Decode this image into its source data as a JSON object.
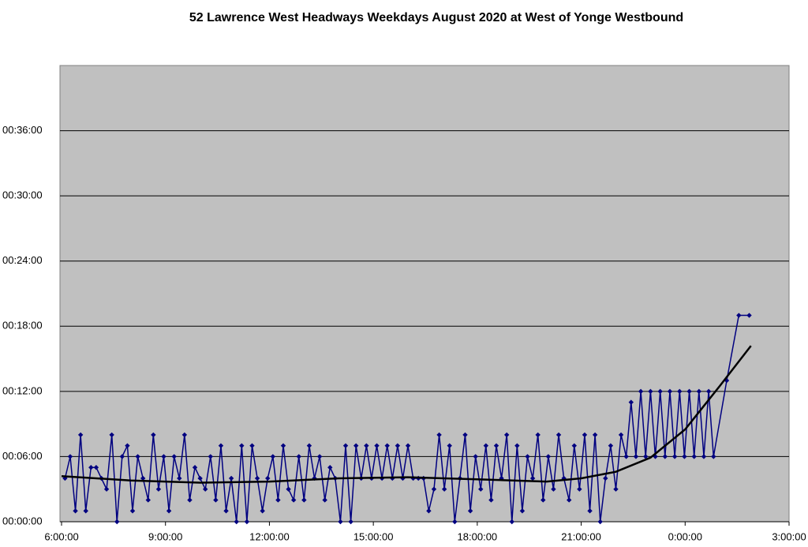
{
  "chart_data": {
    "type": "line",
    "title": "52 Lawrence West Headways Weekdays August 2020 at West of Yonge Westbound",
    "xlim": [
      6,
      27
    ],
    "xticks": [
      {
        "value": 6,
        "label": "6:00:00"
      },
      {
        "value": 9,
        "label": "9:00:00"
      },
      {
        "value": 12,
        "label": "12:00:00"
      },
      {
        "value": 15,
        "label": "15:00:00"
      },
      {
        "value": 18,
        "label": "18:00:00"
      },
      {
        "value": 21,
        "label": "21:00:00"
      },
      {
        "value": 24,
        "label": "0:00:00"
      },
      {
        "value": 27,
        "label": "3:00:00"
      }
    ],
    "ylim": [
      0,
      42
    ],
    "yticks": [
      {
        "value": 0,
        "label": "00:00:00"
      },
      {
        "value": 6,
        "label": "00:06:00"
      },
      {
        "value": 12,
        "label": "00:12:00"
      },
      {
        "value": 18,
        "label": "00:18:00"
      },
      {
        "value": 24,
        "label": "00:24:00"
      },
      {
        "value": 30,
        "label": "00:30:00"
      },
      {
        "value": 36,
        "label": "00:36:00"
      }
    ],
    "grid": true,
    "series": [
      {
        "color": "#000080",
        "markers": true,
        "x": [
          6.1,
          6.25,
          6.4,
          6.55,
          6.7,
          6.85,
          7,
          7.15,
          7.3,
          7.45,
          7.6,
          7.75,
          7.9,
          8.05,
          8.2,
          8.35,
          8.5,
          8.65,
          8.8,
          8.95,
          9.1,
          9.25,
          9.4,
          9.55,
          9.7,
          9.85,
          10,
          10.15,
          10.3,
          10.45,
          10.6,
          10.75,
          10.9,
          11.05,
          11.2,
          11.35,
          11.5,
          11.65,
          11.8,
          11.95,
          12.1,
          12.25,
          12.4,
          12.55,
          12.7,
          12.85,
          13,
          13.15,
          13.3,
          13.45,
          13.6,
          13.75,
          13.9,
          14.05,
          14.2,
          14.35,
          14.5,
          14.65,
          14.8,
          14.95,
          15.1,
          15.25,
          15.4,
          15.55,
          15.7,
          15.85,
          16,
          16.15,
          16.3,
          16.45,
          16.6,
          16.75,
          16.9,
          17.05,
          17.2,
          17.35,
          17.5,
          17.65,
          17.8,
          17.95,
          18.1,
          18.25,
          18.4,
          18.55,
          18.7,
          18.85,
          19,
          19.15,
          19.3,
          19.45,
          19.6,
          19.75,
          19.9,
          20.05,
          20.2,
          20.35,
          20.5,
          20.65,
          20.8,
          20.95,
          21.1,
          21.25,
          21.4,
          21.55,
          21.7,
          21.85,
          22,
          22.15,
          22.3,
          22.44,
          22.58,
          22.72,
          22.86,
          23,
          23.14,
          23.28,
          23.42,
          23.56,
          23.7,
          23.84,
          23.98,
          24.12,
          24.26,
          24.4,
          24.54,
          24.68,
          24.82,
          25.2,
          25.55,
          25.85
        ],
        "values": [
          4,
          6,
          1,
          8,
          1,
          5,
          5,
          4,
          3,
          8,
          0,
          6,
          7,
          1,
          6,
          4,
          2,
          8,
          3,
          6,
          1,
          6,
          4,
          8,
          2,
          5,
          4,
          3,
          6,
          2,
          7,
          1,
          4,
          0,
          7,
          0,
          7,
          4,
          1,
          4,
          6,
          2,
          7,
          3,
          2,
          6,
          2,
          7,
          4,
          6,
          2,
          5,
          4,
          0,
          7,
          0,
          7,
          4,
          7,
          4,
          7,
          4,
          7,
          4,
          7,
          4,
          7,
          4,
          4,
          4,
          1,
          3,
          8,
          3,
          7,
          0,
          4,
          8,
          1,
          6,
          3,
          7,
          2,
          7,
          4,
          8,
          0,
          7,
          1,
          6,
          4,
          8,
          2,
          6,
          3,
          8,
          4,
          2,
          7,
          3,
          8,
          1,
          8,
          0,
          4,
          7,
          3,
          8,
          6,
          11,
          6,
          12,
          6,
          12,
          6,
          12,
          6,
          12,
          6,
          12,
          6,
          12,
          6,
          12,
          6,
          12,
          6,
          13,
          19,
          19
        ]
      },
      {
        "color": "#000000",
        "markers": false,
        "x": [
          6,
          8,
          10,
          12,
          14,
          16,
          18,
          20,
          21,
          22,
          23,
          24,
          25,
          25.9
        ],
        "values": [
          4.2,
          3.8,
          3.6,
          3.7,
          4.0,
          4.1,
          3.9,
          3.7,
          4.0,
          4.6,
          5.9,
          8.5,
          12.5,
          16.2
        ]
      }
    ]
  }
}
